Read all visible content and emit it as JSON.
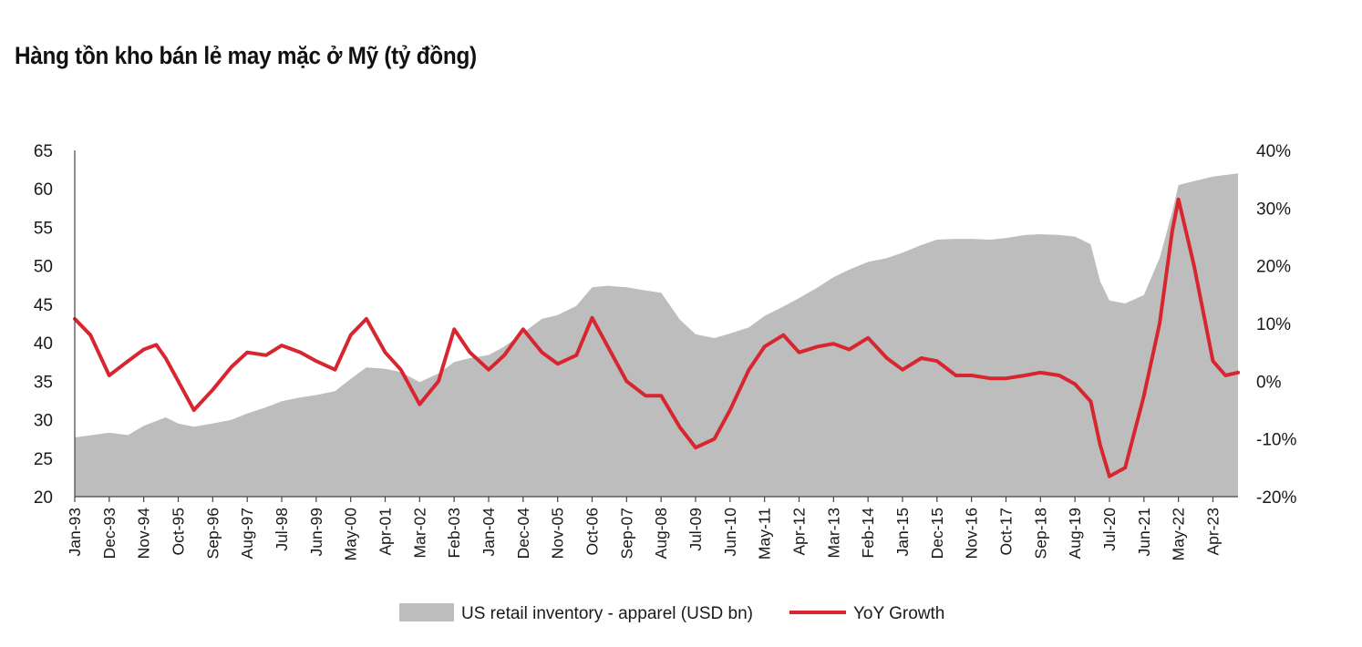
{
  "title": "Hàng tồn kho bán lẻ may mặc ở Mỹ (tỷ đồng)",
  "chart_data": {
    "type": "area",
    "title": "Hàng tồn kho bán lẻ may mặc ở Mỹ (tỷ đồng)",
    "x_start": "1993-01",
    "x_end": "2023-12",
    "categories": [
      "Jan-93",
      "Dec-93",
      "Nov-94",
      "Oct-95",
      "Sep-96",
      "Aug-97",
      "Jul-98",
      "Jun-99",
      "May-00",
      "Apr-01",
      "Mar-02",
      "Feb-03",
      "Jan-04",
      "Dec-04",
      "Nov-05",
      "Oct-06",
      "Sep-07",
      "Aug-08",
      "Jul-09",
      "Jun-10",
      "May-11",
      "Apr-12",
      "Mar-13",
      "Feb-14",
      "Jan-15",
      "Dec-15",
      "Nov-16",
      "Oct-17",
      "Sep-18",
      "Aug-19",
      "Jul-20",
      "Jun-21",
      "May-22",
      "Apr-23"
    ],
    "y_left": {
      "min": 20,
      "max": 65,
      "ticks": [
        "20",
        "25",
        "30",
        "35",
        "40",
        "45",
        "50",
        "55",
        "60",
        "65"
      ]
    },
    "y_right": {
      "min": -20,
      "max": 40,
      "ticks": [
        "-20%",
        "-10%",
        "0%",
        "10%",
        "20%",
        "30%",
        "40%"
      ]
    },
    "legend_placement": "bottom",
    "grid": false,
    "series": [
      {
        "name": "US retail inventory - apparel (USD bn)",
        "type": "area",
        "axis": "left",
        "color": "#bdbdbd",
        "points": [
          [
            "1993-01",
            27.7
          ],
          [
            "1993-12",
            28.3
          ],
          [
            "1994-06",
            28.0
          ],
          [
            "1994-11",
            29.2
          ],
          [
            "1995-06",
            30.3
          ],
          [
            "1995-10",
            29.5
          ],
          [
            "1996-03",
            29.1
          ],
          [
            "1996-09",
            29.5
          ],
          [
            "1997-03",
            30.0
          ],
          [
            "1997-08",
            30.8
          ],
          [
            "1998-02",
            31.6
          ],
          [
            "1998-07",
            32.4
          ],
          [
            "1999-01",
            32.9
          ],
          [
            "1999-06",
            33.2
          ],
          [
            "1999-12",
            33.7
          ],
          [
            "2000-05",
            35.3
          ],
          [
            "2000-10",
            36.8
          ],
          [
            "2001-04",
            36.6
          ],
          [
            "2001-09",
            36.2
          ],
          [
            "2002-03",
            34.9
          ],
          [
            "2002-09",
            36.0
          ],
          [
            "2003-02",
            37.5
          ],
          [
            "2003-07",
            38.0
          ],
          [
            "2004-01",
            38.4
          ],
          [
            "2004-06",
            39.5
          ],
          [
            "2004-12",
            41.3
          ],
          [
            "2005-06",
            43.1
          ],
          [
            "2005-11",
            43.6
          ],
          [
            "2006-05",
            44.8
          ],
          [
            "2006-10",
            47.2
          ],
          [
            "2007-03",
            47.4
          ],
          [
            "2007-09",
            47.2
          ],
          [
            "2008-03",
            46.8
          ],
          [
            "2008-08",
            46.5
          ],
          [
            "2009-02",
            43.0
          ],
          [
            "2009-07",
            41.1
          ],
          [
            "2010-01",
            40.6
          ],
          [
            "2010-06",
            41.2
          ],
          [
            "2010-12",
            42.0
          ],
          [
            "2011-05",
            43.5
          ],
          [
            "2011-11",
            44.7
          ],
          [
            "2012-04",
            45.8
          ],
          [
            "2012-10",
            47.2
          ],
          [
            "2013-03",
            48.5
          ],
          [
            "2013-08",
            49.5
          ],
          [
            "2014-02",
            50.5
          ],
          [
            "2014-08",
            51.0
          ],
          [
            "2015-01",
            51.7
          ],
          [
            "2015-07",
            52.7
          ],
          [
            "2015-12",
            53.4
          ],
          [
            "2016-06",
            53.5
          ],
          [
            "2016-11",
            53.5
          ],
          [
            "2017-05",
            53.4
          ],
          [
            "2017-10",
            53.6
          ],
          [
            "2018-04",
            54.0
          ],
          [
            "2018-09",
            54.1
          ],
          [
            "2019-03",
            54.0
          ],
          [
            "2019-08",
            53.8
          ],
          [
            "2020-01",
            52.8
          ],
          [
            "2020-04",
            48.0
          ],
          [
            "2020-07",
            45.5
          ],
          [
            "2020-12",
            45.1
          ],
          [
            "2021-06",
            46.2
          ],
          [
            "2021-11",
            51.0
          ],
          [
            "2022-03",
            57.0
          ],
          [
            "2022-05",
            60.5
          ],
          [
            "2022-10",
            61.0
          ],
          [
            "2023-04",
            61.6
          ],
          [
            "2023-08",
            61.8
          ],
          [
            "2023-12",
            62.0
          ]
        ]
      },
      {
        "name": "YoY Growth",
        "type": "line",
        "axis": "right",
        "unit": "%",
        "color": "#d7262f",
        "points": [
          [
            "1993-01",
            10.8
          ],
          [
            "1993-06",
            8.0
          ],
          [
            "1993-12",
            1.0
          ],
          [
            "1994-06",
            3.5
          ],
          [
            "1994-11",
            5.5
          ],
          [
            "1995-03",
            6.3
          ],
          [
            "1995-06",
            4.0
          ],
          [
            "1995-10",
            0.0
          ],
          [
            "1996-03",
            -5.0
          ],
          [
            "1996-09",
            -1.5
          ],
          [
            "1997-03",
            2.5
          ],
          [
            "1997-08",
            5.0
          ],
          [
            "1998-02",
            4.5
          ],
          [
            "1998-07",
            6.2
          ],
          [
            "1999-01",
            5.0
          ],
          [
            "1999-06",
            3.5
          ],
          [
            "1999-12",
            2.0
          ],
          [
            "2000-05",
            8.0
          ],
          [
            "2000-10",
            10.8
          ],
          [
            "2001-04",
            5.0
          ],
          [
            "2001-09",
            2.0
          ],
          [
            "2002-03",
            -4.0
          ],
          [
            "2002-09",
            0.0
          ],
          [
            "2003-02",
            9.0
          ],
          [
            "2003-07",
            5.0
          ],
          [
            "2004-01",
            2.0
          ],
          [
            "2004-06",
            4.5
          ],
          [
            "2004-12",
            9.0
          ],
          [
            "2005-06",
            5.0
          ],
          [
            "2005-11",
            3.0
          ],
          [
            "2006-05",
            4.5
          ],
          [
            "2006-10",
            11.0
          ],
          [
            "2007-03",
            6.0
          ],
          [
            "2007-09",
            0.0
          ],
          [
            "2008-03",
            -2.5
          ],
          [
            "2008-08",
            -2.5
          ],
          [
            "2009-02",
            -8.0
          ],
          [
            "2009-07",
            -11.5
          ],
          [
            "2010-01",
            -10.0
          ],
          [
            "2010-06",
            -5.0
          ],
          [
            "2010-12",
            2.0
          ],
          [
            "2011-05",
            6.0
          ],
          [
            "2011-11",
            8.0
          ],
          [
            "2012-04",
            5.0
          ],
          [
            "2012-10",
            6.0
          ],
          [
            "2013-03",
            6.5
          ],
          [
            "2013-08",
            5.5
          ],
          [
            "2014-02",
            7.5
          ],
          [
            "2014-08",
            4.0
          ],
          [
            "2015-01",
            2.0
          ],
          [
            "2015-07",
            4.0
          ],
          [
            "2015-12",
            3.5
          ],
          [
            "2016-06",
            1.0
          ],
          [
            "2016-11",
            1.0
          ],
          [
            "2017-05",
            0.5
          ],
          [
            "2017-10",
            0.5
          ],
          [
            "2018-04",
            1.0
          ],
          [
            "2018-09",
            1.5
          ],
          [
            "2019-03",
            1.0
          ],
          [
            "2019-08",
            -0.5
          ],
          [
            "2020-01",
            -3.5
          ],
          [
            "2020-04",
            -11.0
          ],
          [
            "2020-07",
            -16.5
          ],
          [
            "2020-12",
            -15.0
          ],
          [
            "2021-06",
            -2.5
          ],
          [
            "2021-11",
            10.0
          ],
          [
            "2022-03",
            26.0
          ],
          [
            "2022-05",
            31.5
          ],
          [
            "2022-10",
            20.0
          ],
          [
            "2023-04",
            3.5
          ],
          [
            "2023-08",
            1.0
          ],
          [
            "2023-12",
            1.5
          ]
        ]
      }
    ]
  }
}
